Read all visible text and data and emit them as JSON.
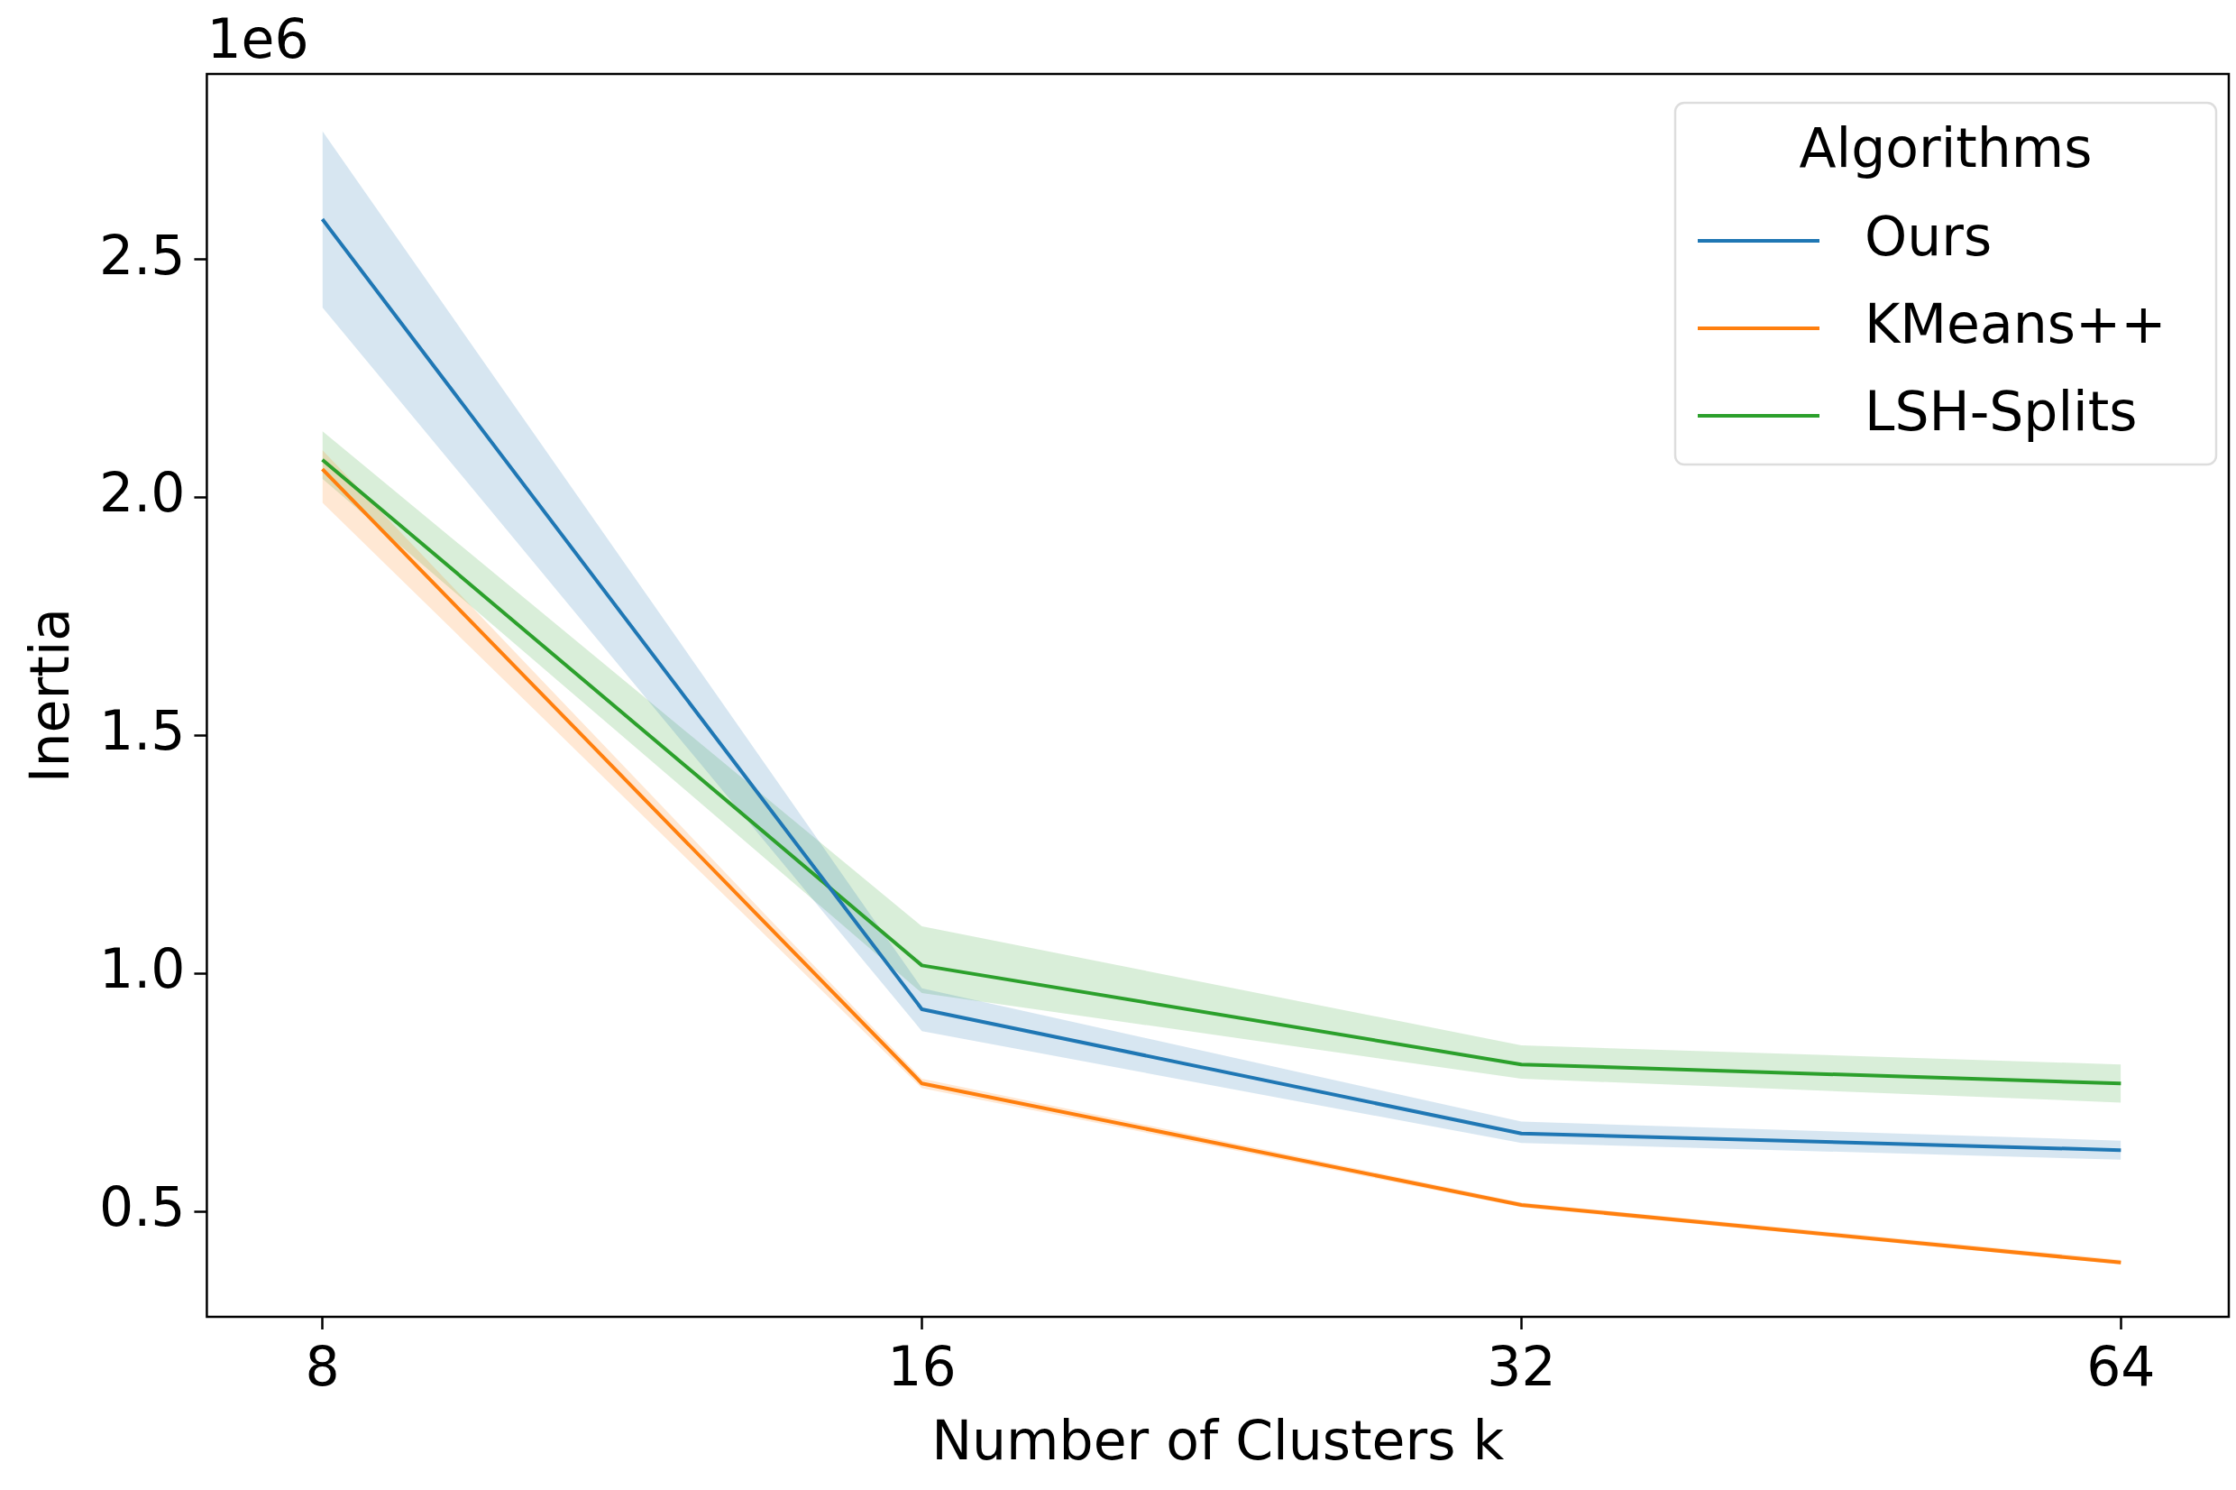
{
  "chart_data": {
    "type": "line",
    "xlabel": "Number of Clusters k",
    "ylabel": "Inertia",
    "legend_title": "Algorithms",
    "annotations": [
      "1e6"
    ],
    "log": "x",
    "x": [
      8,
      16,
      32,
      64
    ],
    "xlim": [
      7.0,
      72.5
    ],
    "xticks": [
      8,
      16,
      32,
      64
    ],
    "ylim": [
      0.28,
      2.89
    ],
    "yticks": [
      0.5,
      {
        "value": 1,
        "label": "1.0"
      },
      1.5,
      {
        "value": 2,
        "label": "2.0"
      },
      2.5
    ],
    "series": [
      {
        "name": "Ours",
        "color": "#1f77b4",
        "values": [
          2.585,
          0.926,
          0.665,
          0.63
        ],
        "lower": [
          2.4,
          0.88,
          0.645,
          0.61
        ],
        "upper": [
          2.77,
          0.97,
          0.69,
          0.65
        ]
      },
      {
        "name": "KMeans++",
        "color": "#ff7f0e",
        "values": [
          2.06,
          0.77,
          0.515,
          0.394
        ],
        "lower": [
          1.99,
          0.76,
          0.51,
          0.39
        ],
        "upper": [
          2.1,
          0.78,
          0.52,
          0.4
        ]
      },
      {
        "name": "LSH-Splits",
        "color": "#2ca02c",
        "values": [
          2.08,
          1.018,
          0.81,
          0.77
        ],
        "lower": [
          2.04,
          0.96,
          0.78,
          0.73
        ],
        "upper": [
          2.14,
          1.1,
          0.85,
          0.81
        ]
      }
    ],
    "grid": false,
    "legend": "top right",
    "marker": "none",
    "line_style": "solid"
  }
}
